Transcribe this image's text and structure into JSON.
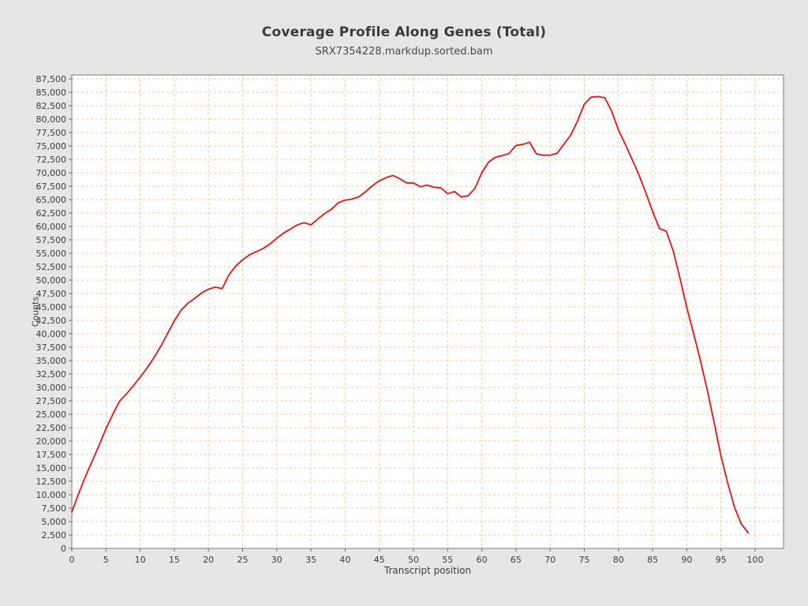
{
  "page": {
    "background_color": "#e6e6e6",
    "plot_background_color": "#ffffff",
    "plot_border_color": "#8f8f8f",
    "grid_color": "#f2c7a0",
    "line_color": "#ff0000",
    "tick_color": "#6b6b6b",
    "label_color": "#3c3c3c"
  },
  "chart": {
    "title": "Coverage Profile Along Genes (Total)",
    "subtitle": "SRX7354228.markdup.sorted.bam",
    "xlabel": "Transcript position",
    "ylabel": "Counts"
  },
  "chart_data": {
    "type": "line",
    "title": "Coverage Profile Along Genes (Total)",
    "subtitle": "SRX7354228.markdup.sorted.bam",
    "xlabel": "Transcript position",
    "ylabel": "Counts",
    "xlim": [
      0,
      104
    ],
    "ylim": [
      0,
      88300
    ],
    "x_ticks": [
      0,
      5,
      10,
      15,
      20,
      25,
      30,
      35,
      40,
      45,
      50,
      55,
      60,
      65,
      70,
      75,
      80,
      85,
      90,
      95,
      100
    ],
    "y_ticks": [
      0,
      2500,
      5000,
      7500,
      10000,
      12500,
      15000,
      17500,
      20000,
      22500,
      25000,
      27500,
      30000,
      32500,
      35000,
      37500,
      40000,
      42500,
      45000,
      47500,
      50000,
      52500,
      55000,
      57500,
      60000,
      62500,
      65000,
      67500,
      70000,
      72500,
      75000,
      77500,
      80000,
      82500,
      85000,
      87500
    ],
    "grid": "dashed",
    "legend": "none",
    "x": [
      0,
      1,
      2,
      3,
      4,
      5,
      6,
      7,
      8,
      9,
      10,
      11,
      12,
      13,
      14,
      15,
      16,
      17,
      18,
      19,
      20,
      21,
      22,
      23,
      24,
      25,
      26,
      27,
      28,
      29,
      30,
      31,
      32,
      33,
      34,
      35,
      36,
      37,
      38,
      39,
      40,
      41,
      42,
      43,
      44,
      45,
      46,
      47,
      48,
      49,
      50,
      51,
      52,
      53,
      54,
      55,
      56,
      57,
      58,
      59,
      60,
      61,
      62,
      63,
      64,
      65,
      66,
      67,
      68,
      69,
      70,
      71,
      72,
      73,
      74,
      75,
      76,
      77,
      78,
      79,
      80,
      81,
      82,
      83,
      84,
      85,
      86,
      87,
      88,
      89,
      90,
      91,
      92,
      93,
      94,
      95,
      96,
      97,
      98,
      99
    ],
    "values": [
      6800,
      10200,
      13400,
      16300,
      19200,
      22300,
      25000,
      27450,
      28800,
      30300,
      31900,
      33600,
      35500,
      37600,
      40000,
      42400,
      44400,
      45700,
      46600,
      47600,
      48300,
      48700,
      48400,
      51000,
      52600,
      53800,
      54700,
      55300,
      55900,
      56700,
      57800,
      58800,
      59500,
      60300,
      60700,
      60300,
      61400,
      62400,
      63200,
      64400,
      64900,
      65100,
      65500,
      66500,
      67600,
      68500,
      69100,
      69500,
      68900,
      68100,
      68100,
      67400,
      67700,
      67300,
      67200,
      66100,
      66500,
      65500,
      65700,
      67100,
      70000,
      72000,
      72900,
      73200,
      73600,
      75100,
      75300,
      75700,
      73500,
      73300,
      73300,
      73600,
      75300,
      77000,
      79600,
      82800,
      84100,
      84200,
      84000,
      81500,
      78000,
      75300,
      72500,
      69600,
      66300,
      62800,
      59600,
      59100,
      55500,
      50400,
      44900,
      40000,
      35000,
      29500,
      23500,
      17200,
      12100,
      7600,
      4500,
      2900
    ]
  }
}
